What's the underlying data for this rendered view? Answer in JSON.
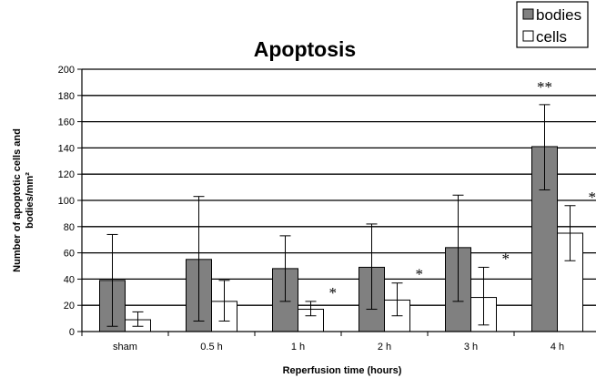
{
  "chart_data": {
    "type": "bar",
    "title": "Apoptosis",
    "xlabel": "Reperfusion time (hours)",
    "ylabel": "Number of apoptotic cells and bodies/mm²",
    "ylabel_lines": [
      "Number of apoptotic cells and",
      "bodies/mm²"
    ],
    "ylim": [
      0,
      200
    ],
    "yticks": [
      0,
      20,
      40,
      60,
      80,
      100,
      120,
      140,
      160,
      180,
      200
    ],
    "grid": true,
    "legend_position": "top-right",
    "categories": [
      "sham",
      "0.5 h",
      "1 h",
      "2 h",
      "3 h",
      "4 h"
    ],
    "series": [
      {
        "name": "bodies",
        "color": "#808080",
        "values": [
          39,
          55,
          48,
          49,
          64,
          141
        ],
        "error_low": [
          4,
          8,
          23,
          17,
          23,
          108
        ],
        "error_high": [
          74,
          103,
          73,
          82,
          104,
          173
        ],
        "significance": [
          "",
          "",
          "",
          "",
          "",
          "**"
        ]
      },
      {
        "name": "cells",
        "color": "#ffffff",
        "values": [
          9,
          23,
          17,
          24,
          26,
          75
        ],
        "error_low": [
          4,
          8,
          12,
          12,
          5,
          54
        ],
        "error_high": [
          15,
          39,
          23,
          37,
          49,
          96
        ],
        "significance": [
          "",
          "",
          "*",
          "*",
          "*",
          "**"
        ]
      }
    ]
  }
}
